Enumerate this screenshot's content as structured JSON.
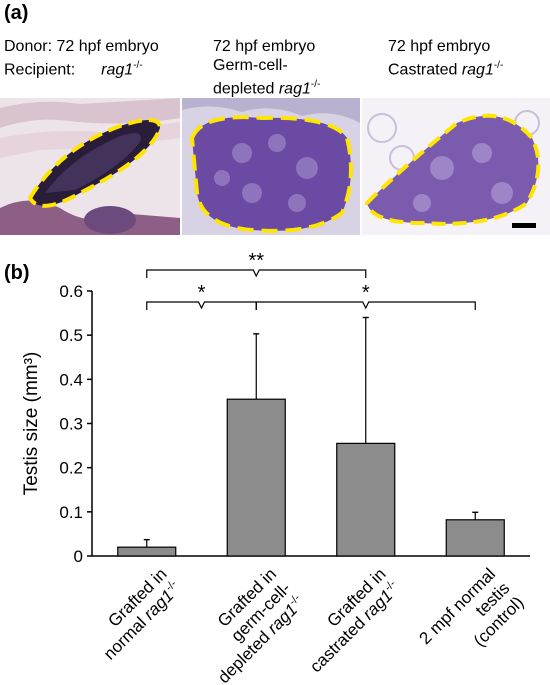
{
  "panel_a": {
    "label": "(a)",
    "col1": {
      "line1": "Donor: 72 hpf embryo",
      "line2a": "Recipient:",
      "line2b": "rag1",
      "line2sup": "-/-"
    },
    "col2": {
      "line1": "72 hpf embryo",
      "line2": "Germ-cell-",
      "line3a": "depleted ",
      "line3b": "rag1",
      "line3sup": "-/-"
    },
    "col3": {
      "line1": "72 hpf embryo",
      "line2a": "Castrated ",
      "line2b": "rag1",
      "line2sup": "-/-"
    },
    "colors": {
      "outline": "#ffe600",
      "tissue": "#6b4aa3",
      "scalebar": "#000000"
    }
  },
  "panel_b": {
    "label": "(b)"
  },
  "chart_data": {
    "type": "bar",
    "ylabel": "Testis size  (mm³)",
    "ylim": [
      0,
      0.6
    ],
    "yticks": [
      "0",
      "0.1",
      "0.2",
      "0.3",
      "0.4",
      "0.5",
      "0.6"
    ],
    "categories": [
      {
        "lines": [
          {
            "text": "Grafted in"
          },
          {
            "text": "normal ",
            "it": "rag1",
            "sup": "-/-"
          }
        ]
      },
      {
        "lines": [
          {
            "text": "Grafted in"
          },
          {
            "text": "germ-cell-"
          },
          {
            "text": "depleted ",
            "it": "rag1",
            "sup": "-/-"
          }
        ]
      },
      {
        "lines": [
          {
            "text": "Grafted in"
          },
          {
            "text": "castrated ",
            "it": "rag1",
            "sup": "-/-"
          }
        ]
      },
      {
        "lines": [
          {
            "text": "2 mpf normal"
          },
          {
            "text": "testis"
          },
          {
            "text": "(control)"
          }
        ]
      }
    ],
    "values": [
      0.02,
      0.355,
      0.255,
      0.082
    ],
    "errors": [
      0.017,
      0.148,
      0.285,
      0.017
    ],
    "bar_color": "#8c8c8c",
    "significance": [
      {
        "from": 0,
        "to": 1,
        "label": "*"
      },
      {
        "from": 1,
        "to": 3,
        "label": "*"
      },
      {
        "from": 0,
        "to": 2,
        "label": "**"
      }
    ]
  }
}
